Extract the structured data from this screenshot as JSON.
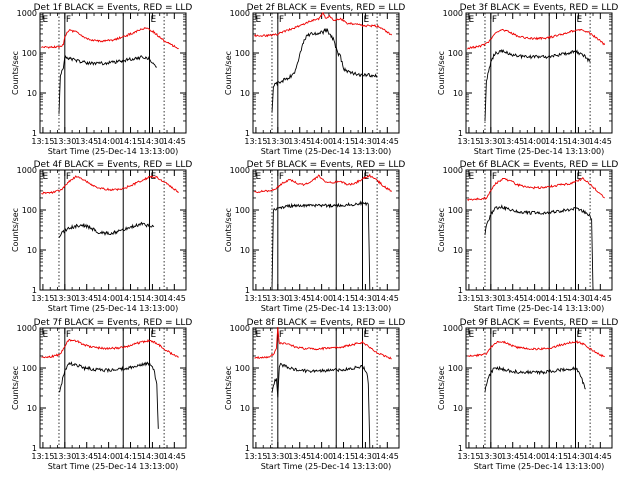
{
  "figure": {
    "ylabel": "Counts/sec",
    "xlabel": "Start Time (25-Dec-14 13:13:00)",
    "x_tick_labels": [
      "13:15",
      "13:30",
      "13:45",
      "14:00",
      "14:15",
      "14:30",
      "14:45"
    ],
    "y_tick_labels": [
      "1",
      "10",
      "100",
      "1000"
    ],
    "flag_labels": [
      "E",
      "F"
    ],
    "colors": {
      "events": "#000000",
      "lld": "#ee0000"
    }
  },
  "chart_data": [
    {
      "type": "line",
      "title": "Det 1f BLACK = Events, RED = LLD",
      "x_unit": "minutes after 13:13:00",
      "xlim": [
        0,
        100
      ],
      "ylim": [
        1,
        1000
      ],
      "yscale": "log",
      "markers": {
        "dotted": [
          13,
          75,
          85
        ],
        "solid": [
          17,
          57,
          75
        ],
        "e_labels": [
          1,
          75
        ],
        "f_labels": [
          17
        ]
      },
      "series": [
        {
          "name": "LLD",
          "color": "red",
          "x": [
            1,
            10,
            14,
            16,
            17,
            20,
            25,
            30,
            35,
            40,
            45,
            50,
            55,
            60,
            65,
            70,
            74,
            78,
            82,
            85,
            90,
            95
          ],
          "y": [
            140,
            140,
            145,
            160,
            260,
            380,
            330,
            250,
            210,
            200,
            200,
            210,
            240,
            280,
            330,
            400,
            410,
            330,
            250,
            200,
            160,
            130
          ]
        },
        {
          "name": "Events",
          "color": "black",
          "x": [
            13,
            14,
            16,
            17,
            20,
            25,
            30,
            35,
            40,
            45,
            50,
            55,
            60,
            65,
            70,
            73,
            75,
            78,
            80
          ],
          "y": [
            3,
            30,
            40,
            80,
            75,
            65,
            58,
            55,
            55,
            56,
            58,
            62,
            68,
            72,
            80,
            78,
            70,
            50,
            45
          ]
        }
      ]
    },
    {
      "type": "line",
      "title": "Det 2f BLACK = Events, RED = LLD",
      "x_unit": "minutes after 13:13:00",
      "xlim": [
        0,
        100
      ],
      "ylim": [
        1,
        1000
      ],
      "yscale": "log",
      "markers": {
        "dotted": [
          13,
          75,
          85
        ],
        "solid": [
          17,
          57,
          75
        ],
        "e_labels": [
          1,
          75
        ],
        "f_labels": [
          17
        ]
      },
      "series": [
        {
          "name": "LLD",
          "color": "red",
          "x": [
            1,
            10,
            14,
            17,
            20,
            25,
            30,
            35,
            40,
            45,
            48,
            50,
            52,
            55,
            60,
            65,
            70,
            75,
            80,
            85,
            90,
            95
          ],
          "y": [
            270,
            275,
            280,
            300,
            330,
            380,
            450,
            540,
            650,
            700,
            1000,
            720,
            850,
            660,
            720,
            540,
            540,
            480,
            480,
            470,
            380,
            280
          ]
        },
        {
          "name": "Events",
          "color": "black",
          "x": [
            13,
            14,
            17,
            20,
            25,
            28,
            30,
            33,
            35,
            38,
            40,
            45,
            48,
            50,
            52,
            55,
            58,
            60,
            62,
            65,
            70,
            75,
            80,
            85
          ],
          "y": [
            3,
            15,
            18,
            20,
            25,
            30,
            50,
            120,
            220,
            280,
            300,
            320,
            330,
            400,
            320,
            220,
            100,
            80,
            40,
            35,
            30,
            28,
            28,
            27
          ]
        }
      ]
    },
    {
      "type": "line",
      "title": "Det 3f BLACK = Events, RED = LLD",
      "x_unit": "minutes after 13:13:00",
      "xlim": [
        0,
        100
      ],
      "ylim": [
        1,
        1000
      ],
      "yscale": "log",
      "markers": {
        "dotted": [
          13,
          75,
          85
        ],
        "solid": [
          17,
          57,
          75
        ],
        "e_labels": [
          1,
          75
        ],
        "f_labels": [
          17
        ]
      },
      "series": [
        {
          "name": "LLD",
          "color": "red",
          "x": [
            1,
            10,
            14,
            17,
            20,
            25,
            30,
            35,
            40,
            45,
            50,
            55,
            60,
            65,
            70,
            75,
            80,
            85,
            90,
            95
          ],
          "y": [
            130,
            150,
            170,
            220,
            300,
            380,
            330,
            270,
            240,
            230,
            230,
            240,
            260,
            290,
            330,
            370,
            380,
            310,
            230,
            160
          ]
        },
        {
          "name": "Events",
          "color": "black",
          "x": [
            13,
            14,
            17,
            20,
            25,
            30,
            35,
            40,
            45,
            50,
            55,
            60,
            65,
            70,
            75,
            80,
            85
          ],
          "y": [
            2,
            20,
            60,
            100,
            110,
            95,
            85,
            80,
            80,
            80,
            80,
            85,
            90,
            100,
            110,
            90,
            60
          ]
        }
      ]
    },
    {
      "type": "line",
      "title": "Det 4f BLACK = Events, RED = LLD",
      "x_unit": "minutes after 13:13:00",
      "xlim": [
        0,
        100
      ],
      "ylim": [
        1,
        1000
      ],
      "yscale": "log",
      "markers": {
        "dotted": [
          13,
          75,
          85
        ],
        "solid": [
          17,
          57,
          75
        ],
        "e_labels": [
          1,
          75
        ],
        "f_labels": [
          17
        ]
      },
      "series": [
        {
          "name": "LLD",
          "color": "red",
          "x": [
            1,
            10,
            15,
            20,
            25,
            30,
            35,
            40,
            45,
            50,
            55,
            60,
            65,
            70,
            75,
            80,
            85,
            90,
            95
          ],
          "y": [
            260,
            280,
            330,
            520,
            700,
            560,
            430,
            360,
            330,
            320,
            330,
            380,
            450,
            560,
            670,
            660,
            500,
            370,
            280
          ]
        },
        {
          "name": "Events",
          "color": "black",
          "x": [
            13,
            15,
            17,
            20,
            25,
            30,
            35,
            40,
            45,
            50,
            55,
            60,
            65,
            70,
            75,
            78
          ],
          "y": [
            20,
            28,
            30,
            35,
            40,
            42,
            35,
            28,
            26,
            27,
            30,
            35,
            40,
            45,
            40,
            38
          ]
        }
      ]
    },
    {
      "type": "line",
      "title": "Det 5f BLACK = Events, RED = LLD",
      "x_unit": "minutes after 13:13:00",
      "xlim": [
        0,
        100
      ],
      "ylim": [
        1,
        1000
      ],
      "yscale": "log",
      "markers": {
        "dotted": [
          13,
          75,
          85
        ],
        "solid": [
          17,
          57,
          75
        ],
        "e_labels": [
          1,
          75
        ],
        "f_labels": [
          17
        ]
      },
      "series": [
        {
          "name": "LLD",
          "color": "red",
          "x": [
            1,
            10,
            15,
            20,
            25,
            30,
            35,
            40,
            45,
            50,
            55,
            60,
            65,
            70,
            75,
            80,
            85,
            90,
            95
          ],
          "y": [
            280,
            300,
            330,
            460,
            580,
            470,
            430,
            520,
            720,
            500,
            480,
            520,
            430,
            470,
            600,
            720,
            550,
            380,
            290
          ]
        },
        {
          "name": "Events",
          "color": "black",
          "x": [
            13,
            14,
            17,
            20,
            25,
            30,
            35,
            40,
            45,
            50,
            55,
            60,
            65,
            70,
            75,
            79,
            80
          ],
          "y": [
            1,
            100,
            110,
            120,
            125,
            130,
            130,
            130,
            130,
            130,
            130,
            130,
            135,
            140,
            150,
            140,
            1
          ]
        }
      ]
    },
    {
      "type": "line",
      "title": "Det 6f BLACK = Events, RED = LLD",
      "x_unit": "minutes after 13:13:00",
      "xlim": [
        0,
        100
      ],
      "ylim": [
        1,
        1000
      ],
      "yscale": "log",
      "markers": {
        "dotted": [
          13,
          75,
          85
        ],
        "solid": [
          17,
          57,
          75
        ],
        "e_labels": [
          1,
          75
        ],
        "f_labels": [
          17
        ]
      },
      "series": [
        {
          "name": "LLD",
          "color": "red",
          "x": [
            1,
            10,
            14,
            17,
            20,
            25,
            30,
            35,
            40,
            45,
            50,
            55,
            60,
            65,
            70,
            75,
            80,
            85,
            90,
            95
          ],
          "y": [
            180,
            190,
            200,
            300,
            450,
            600,
            550,
            430,
            380,
            360,
            360,
            370,
            400,
            430,
            450,
            500,
            620,
            430,
            300,
            200
          ]
        },
        {
          "name": "Events",
          "color": "black",
          "x": [
            13,
            14,
            17,
            20,
            25,
            30,
            35,
            40,
            45,
            50,
            55,
            60,
            65,
            70,
            75,
            80,
            85,
            86,
            87
          ],
          "y": [
            25,
            40,
            80,
            110,
            120,
            100,
            90,
            85,
            85,
            85,
            85,
            90,
            95,
            100,
            110,
            95,
            70,
            60,
            1
          ]
        }
      ]
    },
    {
      "type": "line",
      "title": "Det 7f BLACK = Events, RED = LLD",
      "x_unit": "minutes after 13:13:00",
      "xlim": [
        0,
        100
      ],
      "ylim": [
        1,
        1000
      ],
      "yscale": "log",
      "markers": {
        "dotted": [
          13,
          75,
          85
        ],
        "solid": [
          17,
          57,
          75
        ],
        "e_labels": [
          1,
          75
        ],
        "f_labels": [
          17
        ]
      },
      "series": [
        {
          "name": "LLD",
          "color": "red",
          "x": [
            1,
            10,
            14,
            17,
            20,
            25,
            30,
            35,
            40,
            45,
            50,
            55,
            60,
            65,
            70,
            75,
            80,
            85,
            90,
            95
          ],
          "y": [
            180,
            200,
            220,
            360,
            500,
            480,
            380,
            340,
            320,
            310,
            310,
            320,
            350,
            400,
            450,
            480,
            420,
            300,
            230,
            190
          ]
        },
        {
          "name": "Events",
          "color": "black",
          "x": [
            13,
            14,
            17,
            20,
            25,
            30,
            35,
            40,
            45,
            50,
            55,
            60,
            65,
            70,
            75,
            78,
            80,
            81
          ],
          "y": [
            25,
            30,
            90,
            130,
            120,
            100,
            95,
            90,
            88,
            90,
            95,
            100,
            110,
            120,
            130,
            90,
            40,
            3
          ]
        }
      ]
    },
    {
      "type": "line",
      "title": "Det 8f BLACK = Events, RED = LLD",
      "x_unit": "minutes after 13:13:00",
      "xlim": [
        0,
        100
      ],
      "ylim": [
        1,
        1000
      ],
      "yscale": "log",
      "markers": {
        "dotted": [
          13,
          75,
          85
        ],
        "solid": [
          17,
          57,
          75
        ],
        "e_labels": [
          1,
          75
        ],
        "f_labels": [
          17
        ]
      },
      "series": [
        {
          "name": "LLD",
          "color": "red",
          "x": [
            1,
            10,
            14,
            16,
            17,
            18,
            20,
            25,
            30,
            35,
            40,
            45,
            50,
            55,
            60,
            65,
            70,
            75,
            80,
            85,
            90,
            95
          ],
          "y": [
            180,
            190,
            220,
            300,
            1000,
            400,
            420,
            380,
            330,
            310,
            300,
            300,
            310,
            320,
            330,
            360,
            400,
            440,
            330,
            240,
            200,
            170
          ]
        },
        {
          "name": "Events",
          "color": "black",
          "x": [
            13,
            14,
            16,
            17,
            18,
            19,
            20,
            25,
            30,
            35,
            40,
            45,
            50,
            55,
            60,
            65,
            70,
            75,
            78,
            79,
            80
          ],
          "y": [
            25,
            40,
            55,
            20,
            110,
            130,
            120,
            100,
            90,
            85,
            85,
            85,
            85,
            88,
            90,
            95,
            100,
            110,
            80,
            40,
            1
          ]
        }
      ]
    },
    {
      "type": "line",
      "title": "Det 9f BLACK = Events, RED = LLD",
      "x_unit": "minutes after 13:13:00",
      "xlim": [
        0,
        100
      ],
      "ylim": [
        1,
        1000
      ],
      "yscale": "log",
      "markers": {
        "dotted": [
          13,
          75,
          85
        ],
        "solid": [
          17,
          57,
          75
        ],
        "e_labels": [
          1,
          75
        ],
        "f_labels": [
          17
        ]
      },
      "series": [
        {
          "name": "LLD",
          "color": "red",
          "x": [
            1,
            10,
            14,
            17,
            20,
            25,
            30,
            35,
            40,
            45,
            50,
            55,
            60,
            65,
            70,
            75,
            80,
            85,
            90,
            95
          ],
          "y": [
            200,
            210,
            230,
            320,
            430,
            460,
            380,
            330,
            310,
            300,
            300,
            310,
            330,
            380,
            420,
            460,
            400,
            300,
            230,
            190
          ]
        },
        {
          "name": "Events",
          "color": "black",
          "x": [
            13,
            14,
            17,
            20,
            25,
            30,
            35,
            40,
            45,
            50,
            55,
            60,
            65,
            70,
            75,
            78,
            80,
            82
          ],
          "y": [
            25,
            40,
            80,
            100,
            95,
            85,
            80,
            78,
            78,
            78,
            80,
            85,
            90,
            95,
            100,
            75,
            45,
            30
          ]
        }
      ]
    }
  ]
}
